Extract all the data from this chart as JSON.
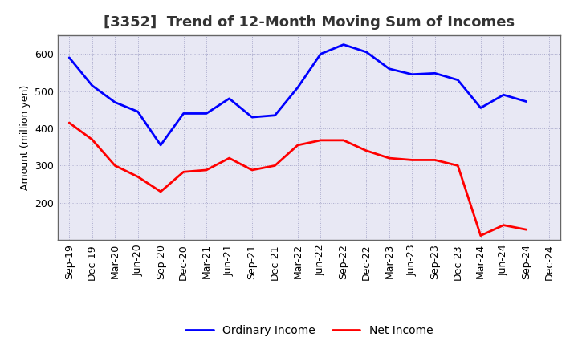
{
  "title": "[3352]  Trend of 12-Month Moving Sum of Incomes",
  "ylabel": "Amount (million yen)",
  "x_labels": [
    "Sep-19",
    "Dec-19",
    "Mar-20",
    "Jun-20",
    "Sep-20",
    "Dec-20",
    "Mar-21",
    "Jun-21",
    "Sep-21",
    "Dec-21",
    "Mar-22",
    "Jun-22",
    "Sep-22",
    "Dec-22",
    "Mar-23",
    "Jun-23",
    "Sep-23",
    "Dec-23",
    "Mar-24",
    "Jun-24",
    "Sep-24",
    "Dec-24"
  ],
  "ordinary_income": [
    590,
    515,
    470,
    445,
    355,
    440,
    440,
    480,
    430,
    435,
    510,
    600,
    625,
    605,
    560,
    545,
    548,
    530,
    455,
    490,
    472,
    null
  ],
  "net_income": [
    415,
    370,
    300,
    270,
    230,
    283,
    288,
    320,
    288,
    300,
    355,
    368,
    368,
    340,
    320,
    315,
    315,
    300,
    112,
    140,
    128,
    null
  ],
  "ordinary_color": "#0000ff",
  "net_color": "#ff0000",
  "ylim_min": 100,
  "ylim_max": 650,
  "yticks": [
    200,
    300,
    400,
    500,
    600
  ],
  "background_color": "#ffffff",
  "plot_bg_color": "#e8e8f4",
  "grid_color": "#aaaacc",
  "title_fontsize": 13,
  "axis_fontsize": 9,
  "legend_fontsize": 10,
  "title_color": "#333333"
}
